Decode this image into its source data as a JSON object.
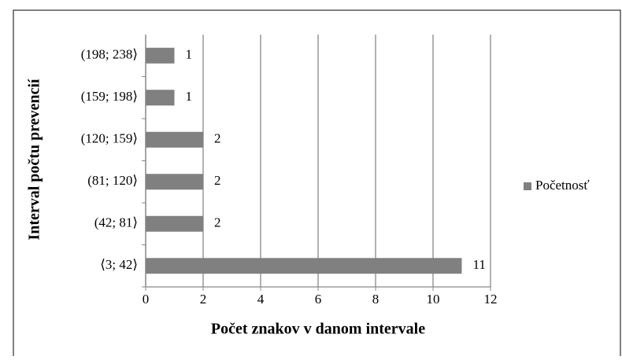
{
  "chart_data": {
    "type": "bar",
    "orientation": "horizontal",
    "x_label": "Počet znakov v danom intervale",
    "y_label": "Interval počtu prevencií",
    "categories": [
      "⟨3; 42⟩",
      "(42; 81⟩",
      "(81; 120⟩",
      "(120; 159⟩",
      "(159; 198⟩",
      "(198; 238⟩"
    ],
    "series": [
      {
        "name": "Početnosť",
        "color": "#808080",
        "values": [
          11,
          2,
          2,
          2,
          1,
          1
        ]
      }
    ],
    "xlim": [
      0,
      12
    ],
    "xticks": [
      0,
      2,
      4,
      6,
      8,
      10,
      12
    ],
    "grid": true,
    "legend": "right"
  }
}
